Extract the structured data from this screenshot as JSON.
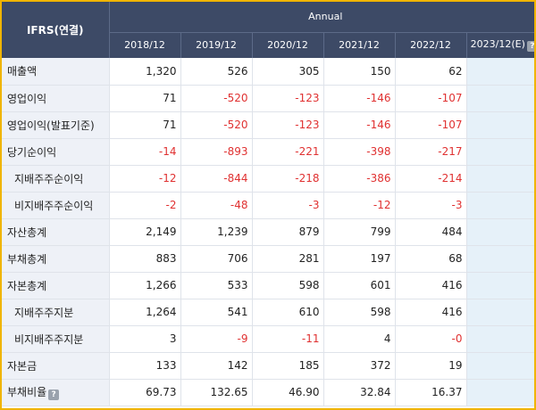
{
  "header": {
    "ifrs": "IFRS(연결)",
    "annual": "Annual",
    "years": [
      "2018/12",
      "2019/12",
      "2020/12",
      "2021/12",
      "2022/12"
    ],
    "estimate_year": "2023/12(E)",
    "help_icon": "question-icon"
  },
  "rows": [
    {
      "label": "매출액",
      "values": [
        "1,320",
        "526",
        "305",
        "150",
        "62"
      ]
    },
    {
      "label": "영업이익",
      "values": [
        "71",
        "-520",
        "-123",
        "-146",
        "-107"
      ]
    },
    {
      "label": "영업이익(발표기준)",
      "values": [
        "71",
        "-520",
        "-123",
        "-146",
        "-107"
      ]
    },
    {
      "label": "당기순이익",
      "values": [
        "-14",
        "-893",
        "-221",
        "-398",
        "-217"
      ]
    },
    {
      "label": "지배주주순이익",
      "values": [
        "-12",
        "-844",
        "-218",
        "-386",
        "-214"
      ]
    },
    {
      "label": "비지배주주순이익",
      "values": [
        "-2",
        "-48",
        "-3",
        "-12",
        "-3"
      ]
    },
    {
      "label": "자산총계",
      "values": [
        "2,149",
        "1,239",
        "879",
        "799",
        "484"
      ]
    },
    {
      "label": "부채총계",
      "values": [
        "883",
        "706",
        "281",
        "197",
        "68"
      ]
    },
    {
      "label": "자본총계",
      "values": [
        "1,266",
        "533",
        "598",
        "601",
        "416"
      ]
    },
    {
      "label": "지배주주지분",
      "values": [
        "1,264",
        "541",
        "610",
        "598",
        "416"
      ]
    },
    {
      "label": "비지배주주지분",
      "values": [
        "3",
        "-9",
        "-11",
        "4",
        "-0"
      ]
    },
    {
      "label": "자본금",
      "values": [
        "133",
        "142",
        "185",
        "372",
        "19"
      ]
    },
    {
      "label": "부채비율",
      "values": [
        "69.73",
        "132.65",
        "46.90",
        "32.84",
        "16.37"
      ]
    }
  ],
  "colors": {
    "header_bg": "#3d4a66",
    "negative": "#e03131",
    "estimate_col": "#e6f1f9",
    "frame": "#f0b400"
  }
}
